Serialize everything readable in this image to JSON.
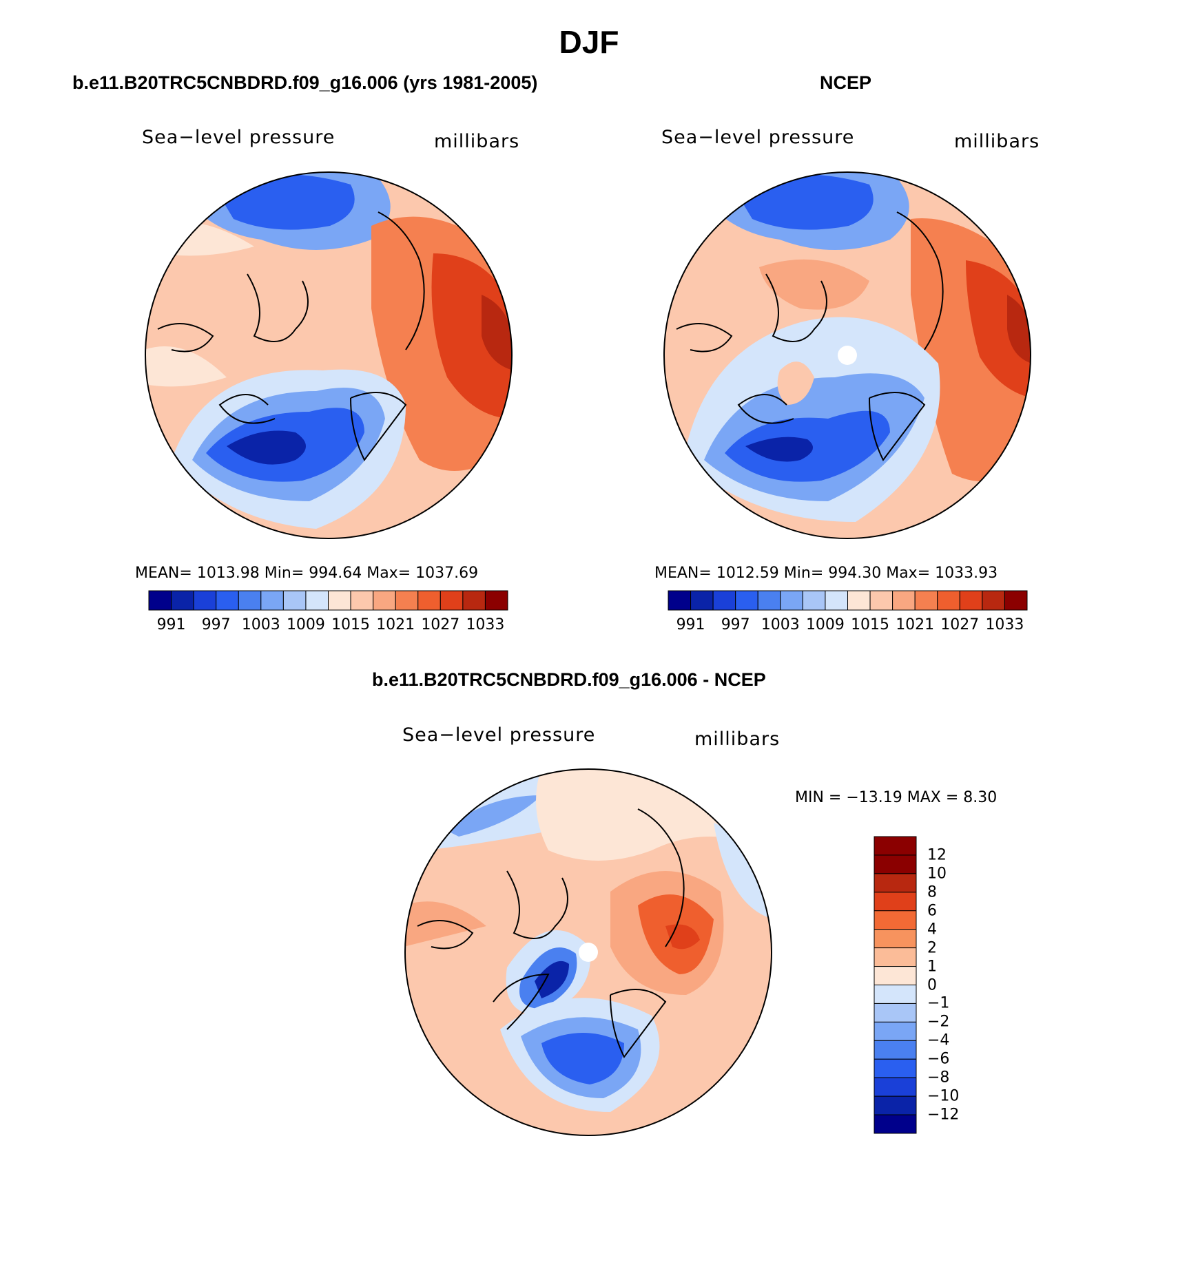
{
  "figure": {
    "title": "DJF"
  },
  "maps": [
    {
      "id": "model",
      "panel_title": "b.e11.B20TRC5CNBDRD.f09_g16.006 (yrs 1981-2005)",
      "field": "Sea−level pressure",
      "units": "millibars",
      "stats": "MEAN=  1013.98    Min=  994.64    Max=  1037.69",
      "colorbar_ticks": [
        "991",
        "997",
        "1003",
        "1009",
        "1015",
        "1021",
        "1027",
        "1033"
      ]
    },
    {
      "id": "obs",
      "panel_title": "NCEP",
      "field": "Sea−level pressure",
      "units": "millibars",
      "stats": "MEAN=  1012.59    Min=  994.30    Max=  1033.93",
      "colorbar_ticks": [
        "991",
        "997",
        "1003",
        "1009",
        "1015",
        "1021",
        "1027",
        "1033"
      ]
    },
    {
      "id": "diff",
      "panel_title": "b.e11.B20TRC5CNBDRD.f09_g16.006 - NCEP",
      "field": "Sea−level pressure",
      "units": "millibars",
      "stats": "MIN  =  −13.19  MAX  =      8.30",
      "colorbar_ticks": [
        "12",
        "10",
        "8",
        "6",
        "4",
        "2",
        "1",
        "0",
        "−1",
        "−2",
        "−4",
        "−6",
        "−8",
        "−10",
        "−12"
      ]
    }
  ],
  "colors": {
    "pressure_scale": [
      "#00008b",
      "#0a23a8",
      "#1a40d8",
      "#2a5ff0",
      "#4a80f0",
      "#7aa6f5",
      "#a9c6f7",
      "#d4e5fb",
      "#fde6d6",
      "#fcc8ad",
      "#f9a781",
      "#f58050",
      "#ef5f2e",
      "#e0401a",
      "#b82810",
      "#8b0000"
    ],
    "diff_scale": [
      "#8b0000",
      "#b82810",
      "#e0401a",
      "#f26a35",
      "#f7935e",
      "#fbbc98",
      "#fde6d6",
      "#d4e5fb",
      "#a9c6f7",
      "#7aa6f5",
      "#4a80f0",
      "#2a5ff0",
      "#1a40d8",
      "#0a23a8",
      "#00008b"
    ]
  }
}
